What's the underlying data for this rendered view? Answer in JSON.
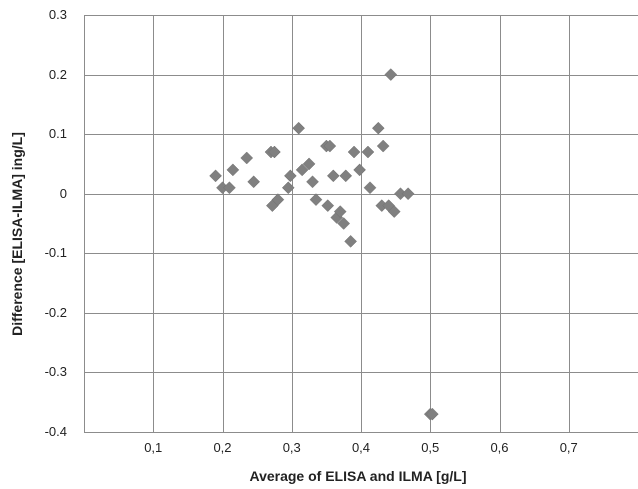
{
  "chart_data": {
    "type": "scatter",
    "title": "",
    "xlabel": "Average of ELISA and ILMA [g/L]",
    "ylabel": "Difference [ELISA-ILMA] ing/L]",
    "xlim": [
      0.0,
      0.8
    ],
    "ylim": [
      -0.4,
      0.3
    ],
    "y_ticks": [
      0.3,
      0.2,
      0.1,
      0,
      -0.1,
      -0.2,
      -0.3,
      -0.4
    ],
    "y_tick_labels": [
      "0.3",
      "0.2",
      "0.1",
      "0",
      "-0.1",
      "-0.2",
      "-0.3",
      "-0.4"
    ],
    "x_tick_labels": [
      {
        "value": 0.1,
        "label": "0,1"
      },
      {
        "value": 0.2,
        "label": "0,2"
      },
      {
        "value": 0.3,
        "label": "0,3"
      },
      {
        "value": 0.4,
        "label": "0,4"
      },
      {
        "value": 0.5,
        "label": "0,5"
      },
      {
        "value": 0.6,
        "label": "0,6"
      },
      {
        "value": 0.7,
        "label": "0,7"
      }
    ],
    "grid": true,
    "legend": "none",
    "marker": "diamond",
    "marker_color": "#808080",
    "x": [
      0.19,
      0.2,
      0.21,
      0.215,
      0.235,
      0.245,
      0.27,
      0.272,
      0.275,
      0.28,
      0.295,
      0.298,
      0.31,
      0.315,
      0.325,
      0.33,
      0.335,
      0.35,
      0.352,
      0.355,
      0.36,
      0.365,
      0.37,
      0.375,
      0.378,
      0.385,
      0.39,
      0.398,
      0.41,
      0.413,
      0.425,
      0.43,
      0.432,
      0.44,
      0.443,
      0.448,
      0.457,
      0.468,
      0.5,
      0.503
    ],
    "y": [
      0.03,
      0.01,
      0.01,
      0.04,
      0.06,
      0.02,
      0.07,
      -0.02,
      0.07,
      -0.01,
      0.01,
      0.03,
      0.11,
      0.04,
      0.05,
      0.02,
      -0.01,
      0.08,
      -0.02,
      0.08,
      0.03,
      -0.04,
      -0.03,
      -0.05,
      0.03,
      -0.08,
      0.07,
      0.04,
      0.07,
      0.01,
      0.11,
      -0.02,
      0.08,
      -0.02,
      0.2,
      -0.03,
      0.0,
      0.0,
      -0.37,
      -0.37
    ]
  }
}
